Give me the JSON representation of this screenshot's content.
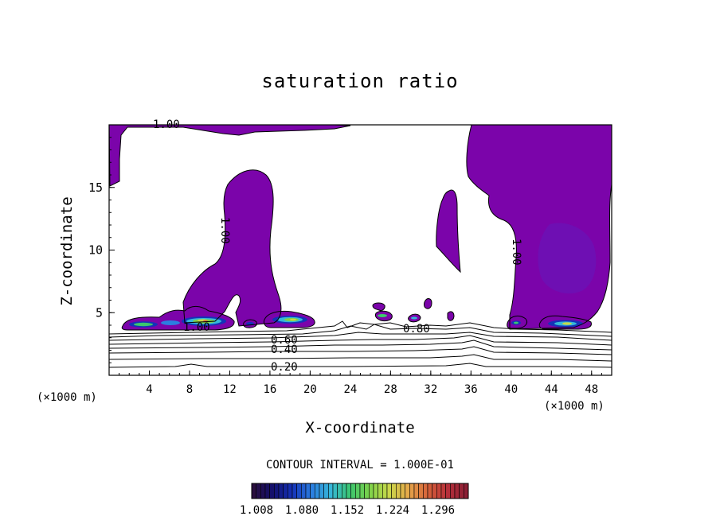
{
  "chart_data": {
    "type": "contour",
    "title": "saturation ratio",
    "xlabel": "X-coordinate",
    "ylabel": "Z-coordinate",
    "x_unit_left": "(×1000 m)",
    "x_unit_right": "(×1000 m)",
    "xlim": [
      0,
      50
    ],
    "ylim": [
      0,
      20
    ],
    "x_ticks": [
      4,
      8,
      12,
      16,
      20,
      24,
      28,
      32,
      36,
      40,
      44,
      48
    ],
    "y_ticks": [
      5,
      10,
      15
    ],
    "contour_labels": [
      "1.00",
      "1.00",
      "1.00",
      "1.00",
      "0.80",
      "0.60",
      "0.40",
      "0.20"
    ],
    "contour_interval": "CONTOUR INTERVAL = 1.000E-01",
    "colorbar": {
      "tick_labels": [
        "1.008",
        "1.080",
        "1.152",
        "1.224",
        "1.296"
      ],
      "colors": [
        "#2a0f3f",
        "#12106e",
        "#1532b8",
        "#2b7ee0",
        "#36b7d8",
        "#3cc66e",
        "#7ed24a",
        "#c9d84a",
        "#e6a94a",
        "#d6623a",
        "#b8303a",
        "#8c1f35"
      ]
    },
    "fill_color": "#7b04aa",
    "grid": false,
    "legend": "none"
  }
}
